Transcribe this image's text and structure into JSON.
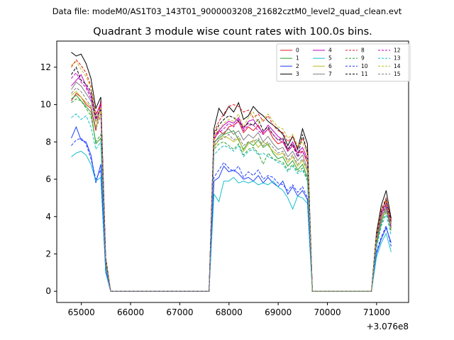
{
  "figure": {
    "suptitle": "Data file: modeM0/AS1T03_143T01_9000003208_21682cztM0_level2_quad_clean.evt",
    "title": "Quadrant 3 module wise count rates with 100.0s bins."
  },
  "chart_data": {
    "type": "line",
    "title": "Quadrant 3 module wise count rates with 100.0s bins.",
    "xlabel": "",
    "ylabel": "",
    "x_offset_label": "+3.076e8",
    "xlim": [
      64500,
      71650
    ],
    "ylim": [
      -0.6,
      13.4
    ],
    "xticks": [
      65000,
      66000,
      67000,
      68000,
      69000,
      70000,
      71000
    ],
    "xtick_labels": [
      "65000",
      "66000",
      "67000",
      "68000",
      "69000",
      "70000",
      "71000"
    ],
    "yticks": [
      0,
      2,
      4,
      6,
      8,
      10,
      12
    ],
    "ytick_labels": [
      "0",
      "2",
      "4",
      "6",
      "8",
      "10",
      "12"
    ],
    "grid": false,
    "legend_position": "top-right",
    "legend_columns": 4,
    "x": [
      64795,
      64895,
      64995,
      65095,
      65195,
      65295,
      65395,
      65495,
      65595,
      67595,
      67695,
      67795,
      67895,
      67995,
      68095,
      68195,
      68295,
      68395,
      68495,
      68595,
      68695,
      68795,
      68895,
      68995,
      69095,
      69195,
      69295,
      69395,
      69495,
      69595,
      69695,
      70895,
      70995,
      71095,
      71195,
      71295
    ],
    "series": [
      {
        "name": "0",
        "color": "#e31a1c",
        "dashed": false,
        "values": [
          10.2,
          10.6,
          10.4,
          10.0,
          9.8,
          8.6,
          10.2,
          1.5,
          0,
          0,
          8.1,
          8.6,
          8.4,
          8.8,
          8.9,
          9.1,
          8.5,
          8.8,
          8.6,
          8.9,
          8.4,
          8.7,
          8.2,
          7.9,
          8.0,
          7.5,
          7.8,
          7.4,
          7.5,
          6.9,
          0,
          0,
          2.8,
          4.1,
          4.9,
          3.8
        ]
      },
      {
        "name": "1",
        "color": "#2ca02c",
        "dashed": false,
        "values": [
          10.3,
          10.5,
          10.2,
          9.9,
          9.6,
          7.9,
          8.2,
          1.4,
          0,
          0,
          8.0,
          8.2,
          8.4,
          8.5,
          8.6,
          8.1,
          7.6,
          8.0,
          7.8,
          8.1,
          7.7,
          7.9,
          7.4,
          7.1,
          7.2,
          6.7,
          7.0,
          6.5,
          6.8,
          6.1,
          0,
          0,
          2.5,
          3.7,
          4.6,
          3.4
        ]
      },
      {
        "name": "2",
        "color": "#1f3fff",
        "dashed": false,
        "values": [
          8.2,
          8.8,
          8.1,
          8.0,
          7.3,
          5.8,
          6.8,
          1.1,
          0,
          0,
          5.9,
          6.1,
          6.7,
          6.4,
          6.5,
          6.3,
          6.0,
          6.1,
          5.9,
          6.2,
          5.8,
          6.1,
          5.8,
          5.6,
          5.9,
          5.2,
          5.6,
          5.1,
          5.4,
          4.9,
          0,
          0,
          2.0,
          2.8,
          3.4,
          2.6
        ]
      },
      {
        "name": "3",
        "color": "#000000",
        "dashed": false,
        "values": [
          12.8,
          12.6,
          12.7,
          12.2,
          11.4,
          9.8,
          10.4,
          1.8,
          0,
          0,
          8.7,
          9.8,
          9.4,
          9.9,
          9.6,
          10.1,
          9.2,
          9.4,
          9.9,
          9.6,
          9.4,
          9.1,
          8.9,
          8.7,
          8.4,
          7.8,
          8.3,
          7.6,
          8.7,
          7.9,
          0,
          0,
          3.1,
          4.6,
          5.4,
          3.9
        ]
      },
      {
        "name": "4",
        "color": "#c000c0",
        "dashed": false,
        "values": [
          11.0,
          11.3,
          11.6,
          11.0,
          10.5,
          9.4,
          10.1,
          1.6,
          0,
          0,
          8.3,
          8.6,
          8.9,
          9.1,
          9.0,
          9.3,
          8.7,
          9.1,
          9.2,
          8.8,
          8.5,
          8.9,
          8.6,
          8.3,
          8.1,
          7.6,
          8.0,
          7.4,
          7.7,
          7.1,
          0,
          0,
          2.9,
          4.2,
          4.7,
          3.6
        ]
      },
      {
        "name": "5",
        "color": "#17becf",
        "dashed": false,
        "values": [
          7.2,
          7.4,
          7.5,
          7.3,
          6.8,
          5.9,
          6.1,
          1.0,
          0,
          0,
          5.2,
          4.8,
          5.9,
          5.9,
          6.1,
          5.8,
          5.9,
          5.8,
          5.9,
          5.7,
          5.8,
          5.7,
          5.9,
          5.6,
          5.4,
          5.0,
          4.4,
          5.1,
          5.0,
          4.7,
          0,
          0,
          1.8,
          2.6,
          3.1,
          2.1
        ]
      },
      {
        "name": "6",
        "color": "#bcbd22",
        "dashed": false,
        "values": [
          10.5,
          10.7,
          10.4,
          10.1,
          9.9,
          8.8,
          9.6,
          1.5,
          0,
          0,
          7.7,
          8.1,
          8.3,
          8.2,
          8.0,
          8.2,
          7.5,
          7.9,
          8.1,
          7.7,
          8.0,
          7.8,
          7.5,
          7.3,
          7.4,
          6.9,
          7.2,
          6.7,
          7.0,
          6.4,
          0,
          0,
          2.6,
          3.9,
          4.4,
          3.3
        ]
      },
      {
        "name": "7",
        "color": "#7f7f7f",
        "dashed": false,
        "values": [
          10.8,
          11.2,
          11.0,
          10.6,
          10.2,
          9.1,
          9.8,
          1.5,
          0,
          0,
          7.9,
          8.3,
          8.5,
          8.7,
          8.4,
          8.6,
          8.1,
          8.4,
          8.2,
          8.5,
          8.0,
          8.3,
          7.9,
          7.6,
          7.7,
          7.2,
          7.5,
          7.0,
          7.3,
          6.6,
          0,
          0,
          2.7,
          4.0,
          4.5,
          3.5
        ]
      },
      {
        "name": "8",
        "color": "#e31a1c",
        "dashed": true,
        "values": [
          12.0,
          12.4,
          12.1,
          11.7,
          11.0,
          9.5,
          10.0,
          1.7,
          0,
          0,
          8.5,
          9.1,
          9.5,
          9.9,
          10.0,
          9.9,
          9.6,
          9.7,
          9.3,
          9.5,
          9.1,
          9.4,
          8.9,
          8.6,
          8.5,
          8.0,
          8.3,
          7.7,
          8.2,
          7.5,
          0,
          0,
          3.0,
          4.4,
          5.0,
          3.8
        ]
      },
      {
        "name": "9",
        "color": "#2ca02c",
        "dashed": true,
        "values": [
          10.1,
          10.3,
          10.2,
          9.8,
          9.4,
          8.0,
          8.4,
          1.4,
          0,
          0,
          7.6,
          7.9,
          8.0,
          7.8,
          7.6,
          7.9,
          7.3,
          7.6,
          7.7,
          7.4,
          6.8,
          7.4,
          7.1,
          7.0,
          6.9,
          6.5,
          6.8,
          6.4,
          6.6,
          6.0,
          0,
          0,
          2.4,
          3.6,
          4.3,
          3.2
        ]
      },
      {
        "name": "10",
        "color": "#1f3fff",
        "dashed": true,
        "values": [
          7.8,
          8.1,
          8.2,
          7.9,
          7.1,
          6.0,
          6.5,
          1.1,
          0,
          0,
          6.1,
          6.5,
          6.9,
          6.6,
          6.4,
          6.7,
          6.1,
          6.4,
          6.2,
          6.5,
          6.0,
          6.2,
          6.1,
          5.8,
          5.7,
          5.4,
          5.7,
          5.3,
          5.6,
          5.0,
          0,
          0,
          2.1,
          2.9,
          3.5,
          2.4
        ]
      },
      {
        "name": "11",
        "color": "#000000",
        "dashed": true,
        "values": [
          11.6,
          12.0,
          11.3,
          11.1,
          10.7,
          9.3,
          9.7,
          1.6,
          0,
          0,
          8.4,
          8.9,
          9.2,
          9.4,
          9.3,
          9.1,
          8.8,
          9.0,
          8.9,
          9.2,
          8.6,
          8.8,
          8.4,
          8.1,
          8.2,
          7.6,
          7.9,
          7.2,
          8.4,
          7.4,
          0,
          0,
          2.9,
          4.3,
          4.9,
          3.7
        ]
      },
      {
        "name": "12",
        "color": "#c000c0",
        "dashed": true,
        "values": [
          11.4,
          11.7,
          11.2,
          10.9,
          10.3,
          9.2,
          9.9,
          1.6,
          0,
          0,
          8.2,
          8.5,
          8.7,
          9.0,
          8.8,
          9.2,
          8.6,
          8.9,
          8.9,
          8.6,
          8.4,
          8.7,
          8.4,
          8.1,
          8.0,
          7.5,
          7.8,
          7.2,
          7.5,
          7.0,
          0,
          0,
          2.8,
          4.1,
          4.6,
          3.4
        ]
      },
      {
        "name": "13",
        "color": "#17becf",
        "dashed": true,
        "values": [
          9.3,
          9.5,
          9.2,
          9.4,
          8.8,
          7.6,
          8.0,
          1.3,
          0,
          0,
          7.3,
          7.6,
          7.8,
          7.7,
          7.5,
          7.8,
          7.2,
          7.5,
          7.6,
          7.3,
          7.4,
          7.2,
          7.1,
          6.9,
          6.8,
          6.4,
          6.7,
          6.3,
          6.5,
          5.9,
          0,
          0,
          2.3,
          3.5,
          4.1,
          3.0
        ]
      },
      {
        "name": "14",
        "color": "#bcbd22",
        "dashed": true,
        "values": [
          12.1,
          12.3,
          11.9,
          11.5,
          10.9,
          9.4,
          9.8,
          1.7,
          0,
          0,
          8.3,
          8.7,
          9.0,
          9.2,
          9.1,
          9.5,
          8.8,
          9.3,
          9.6,
          9.0,
          9.2,
          9.5,
          9.1,
          8.8,
          8.7,
          8.2,
          8.4,
          7.8,
          8.0,
          7.3,
          0,
          0,
          2.9,
          4.3,
          4.8,
          3.6
        ]
      },
      {
        "name": "15",
        "color": "#7f7f7f",
        "dashed": true,
        "values": [
          10.6,
          10.9,
          10.7,
          10.3,
          9.9,
          8.7,
          9.4,
          1.5,
          0,
          0,
          7.8,
          8.1,
          8.2,
          8.4,
          8.1,
          8.3,
          7.8,
          8.0,
          8.0,
          8.2,
          7.8,
          8.0,
          7.7,
          7.4,
          7.5,
          7.0,
          7.3,
          6.8,
          7.1,
          6.5,
          0,
          0,
          2.6,
          3.8,
          4.4,
          3.3
        ]
      }
    ]
  }
}
